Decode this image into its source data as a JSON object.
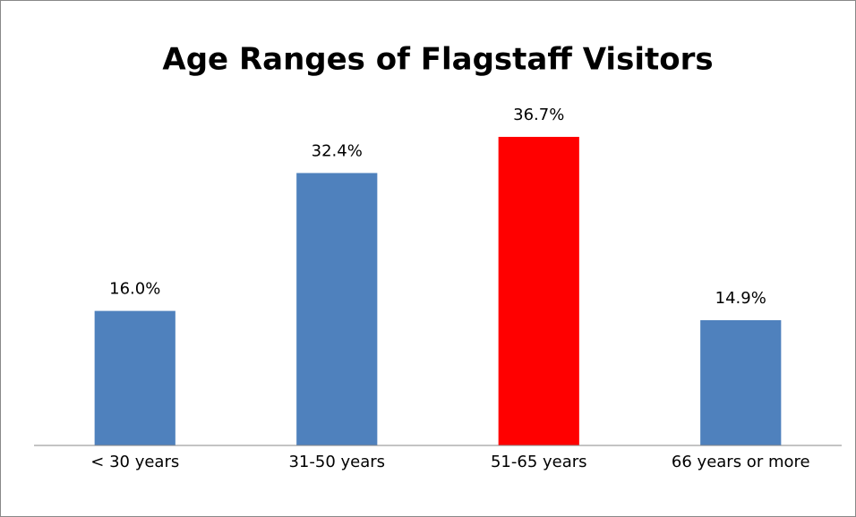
{
  "chart_data": {
    "type": "bar",
    "title": "Age Ranges of Flagstaff Visitors",
    "categories": [
      "< 30 years",
      "31-50 years",
      "51-65 years",
      "66 years or more"
    ],
    "values": [
      16.0,
      32.4,
      36.7,
      14.9
    ],
    "value_labels": [
      "16.0%",
      "32.4%",
      "36.7%",
      "14.9%"
    ],
    "colors": [
      "#4f81bd",
      "#4f81bd",
      "#ff0000",
      "#4f81bd"
    ],
    "ylim": [
      0,
      40
    ]
  }
}
